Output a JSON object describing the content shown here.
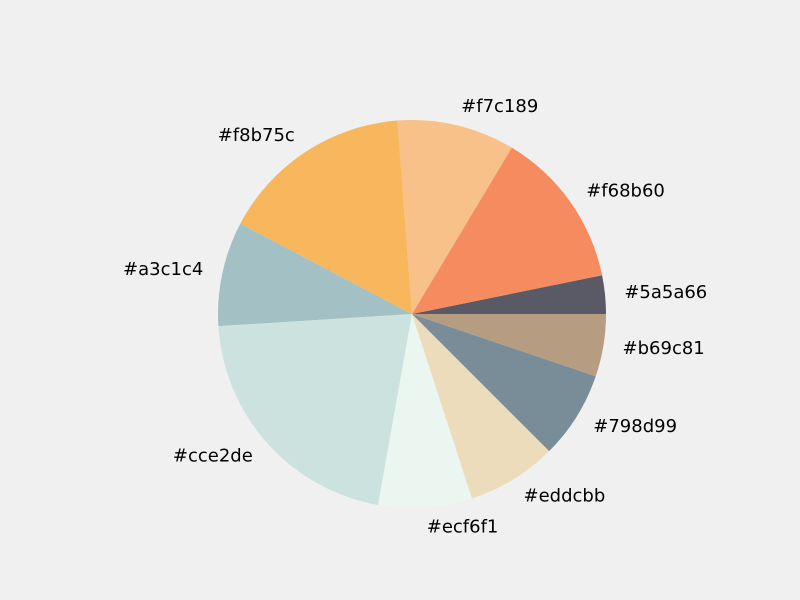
{
  "chart_data": {
    "type": "pie",
    "title": "",
    "start_angle_deg": 0,
    "direction": "counterclockwise",
    "slices": [
      {
        "label": "#5a5a66",
        "color": "#5a5a66",
        "value": 3.2
      },
      {
        "label": "#f68b60",
        "color": "#f68b60",
        "value": 13.2
      },
      {
        "label": "#f7c189",
        "color": "#f7c189",
        "value": 9.8
      },
      {
        "label": "#f8b75c",
        "color": "#f8b75c",
        "value": 16.1
      },
      {
        "label": "#a3c1c4",
        "color": "#a3c1c4",
        "value": 8.7
      },
      {
        "label": "#cce2de",
        "color": "#cce2de",
        "value": 21.2
      },
      {
        "label": "#ecf6f1",
        "color": "#ecf6f1",
        "value": 7.8
      },
      {
        "label": "#eddcbb",
        "color": "#eddcbb",
        "value": 7.5
      },
      {
        "label": "#798d99",
        "color": "#798d99",
        "value": 7.3
      },
      {
        "label": "#b69c81",
        "color": "#b69c81",
        "value": 5.2
      }
    ]
  }
}
